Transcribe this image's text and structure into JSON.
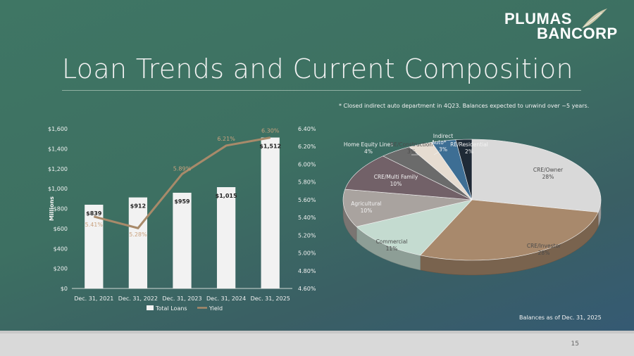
{
  "logo": {
    "line1": "PLUMAS",
    "line2": "BANCORP"
  },
  "title": "Loan Trends and Current Composition",
  "note": "* Closed indirect auto department in 4Q23. Balances expected to unwind over ~5 years.",
  "as_of": "Balances as of Dec. 31, 2025",
  "page_number": "15",
  "colors": {
    "bar": "#f2f2f2",
    "line": "#a88a6a",
    "text": "#f2f2f2"
  },
  "chart_data": [
    {
      "type": "bar",
      "categories": [
        "Dec. 31, 2021",
        "Dec. 31, 2022",
        "Dec. 31, 2023",
        "Dec. 31, 2024",
        "Dec. 31, 2025"
      ],
      "series": [
        {
          "name": "Total Loans",
          "type": "bar",
          "values": [
            839,
            912,
            959,
            1015,
            1512
          ],
          "labels": [
            "$839",
            "$912",
            "$959",
            "$1,015",
            "$1,512"
          ]
        },
        {
          "name": "Yield",
          "type": "line",
          "axis": "right",
          "values": [
            5.41,
            5.28,
            5.89,
            6.21,
            6.3
          ],
          "labels": [
            "5.41%",
            "5.28%",
            "5.89%",
            "6.21%",
            "6.30%"
          ]
        }
      ],
      "ylabel": "Millions",
      "ylim": [
        0,
        1600
      ],
      "yticks": [
        "$0",
        "$200",
        "$400",
        "$600",
        "$800",
        "$1,000",
        "$1,200",
        "$1,400",
        "$1,600"
      ],
      "y2lim": [
        4.6,
        6.4
      ],
      "y2ticks": [
        "4.60%",
        "4.80%",
        "5.00%",
        "5.20%",
        "5.40%",
        "5.60%",
        "5.80%",
        "6.00%",
        "6.20%",
        "6.40%"
      ],
      "grid": false,
      "legend": "bottom"
    },
    {
      "type": "pie",
      "style": "3d",
      "slices": [
        {
          "label": "CRE/Owner",
          "value": 28,
          "text": "28%",
          "color": "#d9d9d9"
        },
        {
          "label": "CRE/Investor",
          "value": 28,
          "text": "28%",
          "color": "#a8896c"
        },
        {
          "label": "Commercial",
          "value": 11,
          "text": "11%",
          "color": "#c4dbd0"
        },
        {
          "label": "Agricultural",
          "value": 10,
          "text": "10%",
          "color": "#a9a39f"
        },
        {
          "label": "CRE/Multi Family",
          "value": 10,
          "text": "10%",
          "color": "#726168"
        },
        {
          "label": "Home Equity Lines",
          "value": 4,
          "text": "4%",
          "color": "#6b6b6b"
        },
        {
          "label": "RE/Construction",
          "value": 3,
          "text": "3%",
          "color": "#e6dcd1"
        },
        {
          "label": "Indirect Auto*",
          "value": 3,
          "text": "3%",
          "color": "#3d6e94"
        },
        {
          "label": "RE/Residential",
          "value": 2,
          "text": "2%",
          "color": "#1f2a36"
        }
      ]
    }
  ]
}
